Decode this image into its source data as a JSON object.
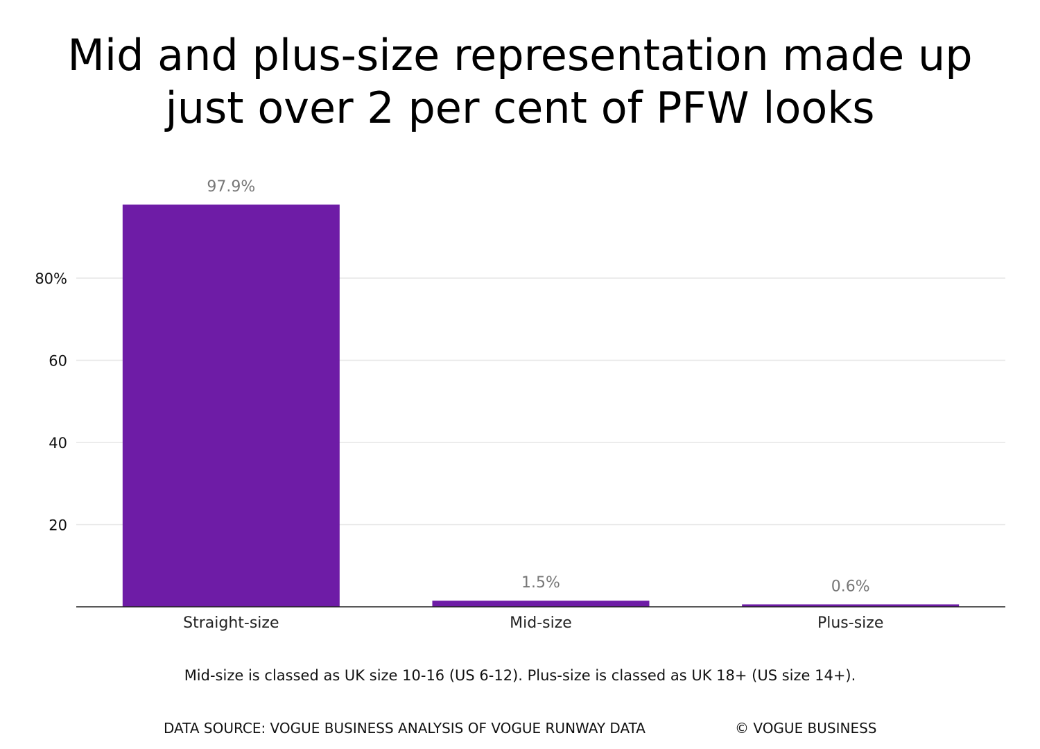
{
  "chart_data": {
    "type": "bar",
    "title_lines": [
      "Mid and plus-size representation made up",
      "just over 2 per cent of PFW looks"
    ],
    "categories": [
      "Straight-size",
      "Mid-size",
      "Plus-size"
    ],
    "values": [
      97.9,
      1.5,
      0.6
    ],
    "data_labels": [
      "97.9%",
      "1.5%",
      "0.6%"
    ],
    "y_ticks": [
      {
        "value": 20,
        "label": "20"
      },
      {
        "value": 40,
        "label": "40"
      },
      {
        "value": 60,
        "label": "60"
      },
      {
        "value": 80,
        "label": "80%"
      }
    ],
    "ylim": [
      0,
      100
    ],
    "grid": true,
    "bar_color": "#6e1ca6",
    "grid_color": "#e6e6e6",
    "label_color": "#777777"
  },
  "footer": {
    "note": "Mid-size is classed as UK size 10-16 (US 6-12). Plus-size is classed as UK 18+ (US size 14+).",
    "source": "DATA SOURCE: VOGUE BUSINESS ANALYSIS OF VOGUE RUNWAY DATA",
    "copyright": "© VOGUE BUSINESS"
  }
}
